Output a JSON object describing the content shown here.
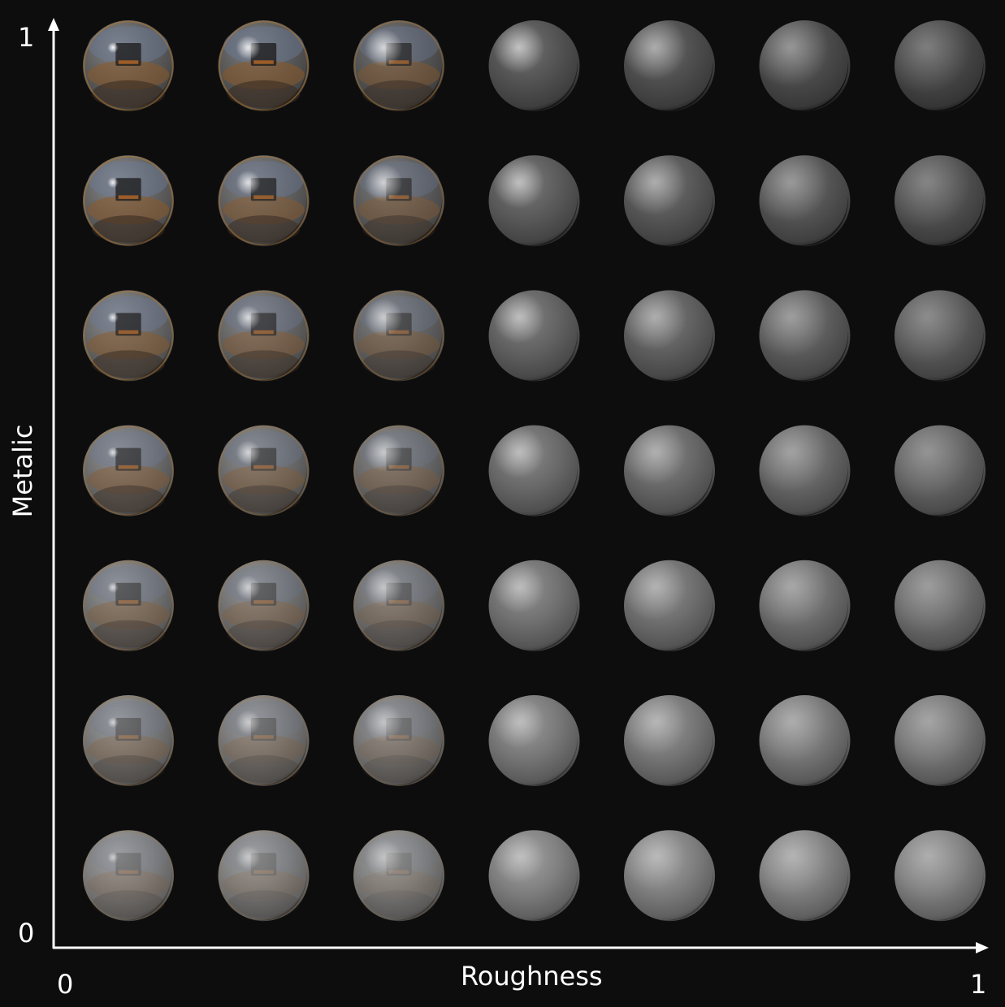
{
  "figure": {
    "x_axis": {
      "label": "Roughness",
      "min_label": "0",
      "max_label": "1"
    },
    "y_axis": {
      "label": "Metalic",
      "min_label": "0",
      "max_label": "1"
    },
    "grid": {
      "columns": 7,
      "rows": 7,
      "roughness_values": [
        0,
        0.1667,
        0.3333,
        0.5,
        0.6667,
        0.8333,
        1
      ],
      "metallic_values_top_to_bottom": [
        1,
        0.8333,
        0.6667,
        0.5,
        0.3333,
        0.1667,
        0
      ]
    },
    "colors": {
      "background": "#0d0d0d",
      "axis": "#ffffff",
      "dielectric_base": "#9a9a9a",
      "metal_base": "#6a6a6a",
      "env_warm": "#8a5a2a",
      "env_sky": "#6a7a9a"
    }
  }
}
